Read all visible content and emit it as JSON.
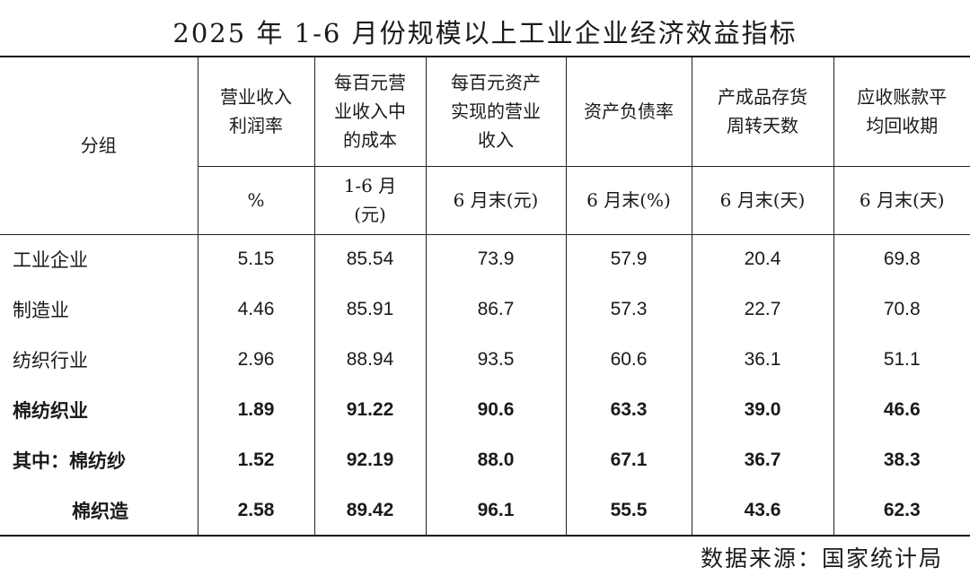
{
  "title": "2025 年 1-6 月份规模以上工业企业经济效益指标",
  "header": {
    "group_label": "分组",
    "columns": [
      {
        "name": "营业收入利润率",
        "line1": "营业收入",
        "line2": "利润率",
        "line3": "",
        "unit1": "%",
        "unit2": ""
      },
      {
        "name": "每百元营业收入中的成本",
        "line1": "每百元营",
        "line2": "业收入中",
        "line3": "的成本",
        "unit1": "1-6 月",
        "unit2": "(元)"
      },
      {
        "name": "每百元资产实现的营业收入",
        "line1": "每百元资产",
        "line2": "实现的营业",
        "line3": "收入",
        "unit1": "6 月末(元)",
        "unit2": ""
      },
      {
        "name": "资产负债率",
        "line1": "资产负债率",
        "line2": "",
        "line3": "",
        "unit1": "6 月末(%)",
        "unit2": ""
      },
      {
        "name": "产成品存货周转天数",
        "line1": "产成品存货",
        "line2": "周转天数",
        "line3": "",
        "unit1": "6 月末(天)",
        "unit2": ""
      },
      {
        "name": "应收账款平均回收期",
        "line1": "应收账款平",
        "line2": "均回收期",
        "line3": "",
        "unit1": "6 月末(天)",
        "unit2": ""
      }
    ]
  },
  "rows": [
    {
      "label": "工业企业",
      "values": [
        "5.15",
        "85.54",
        "73.9",
        "57.9",
        "20.4",
        "69.8"
      ]
    },
    {
      "label": "制造业",
      "values": [
        "4.46",
        "85.91",
        "86.7",
        "57.3",
        "22.7",
        "70.8"
      ]
    },
    {
      "label": "纺织行业",
      "values": [
        "2.96",
        "88.94",
        "93.5",
        "60.6",
        "36.1",
        "51.1"
      ]
    },
    {
      "label": "棉纺织业",
      "values": [
        "1.89",
        "91.22",
        "90.6",
        "63.3",
        "39.0",
        "46.6"
      ]
    },
    {
      "label": "其中：棉纺纱",
      "values": [
        "1.52",
        "92.19",
        "88.0",
        "67.1",
        "36.7",
        "38.3"
      ]
    },
    {
      "label": "棉织造",
      "values": [
        "2.58",
        "89.42",
        "96.1",
        "55.5",
        "43.6",
        "62.3"
      ]
    }
  ],
  "source": "数据来源：国家统计局"
}
